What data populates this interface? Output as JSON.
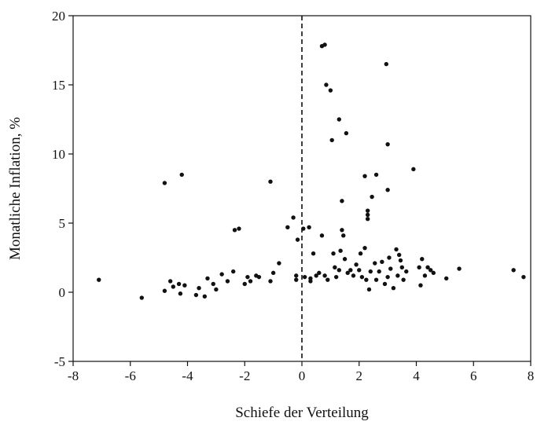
{
  "chart_data": {
    "type": "scatter",
    "title": "",
    "xlabel": "Schiefe der Verteilung",
    "ylabel": "Monatliche Inflation, %",
    "xlim": [
      -8,
      8
    ],
    "ylim": [
      -5,
      20
    ],
    "xticks": [
      -8,
      -6,
      -4,
      -2,
      0,
      2,
      4,
      6,
      8
    ],
    "yticks": [
      -5,
      0,
      5,
      10,
      15,
      20
    ],
    "xtick_labels": [
      "-8",
      "-6",
      "-4",
      "-2",
      "0",
      "2",
      "4",
      "6",
      "8"
    ],
    "ytick_labels": [
      "-5",
      "0",
      "5",
      "10",
      "15",
      "20"
    ],
    "reference_line": {
      "axis": "x",
      "value": 0,
      "style": "dashed"
    },
    "grid": false,
    "point_color": "#111111",
    "points": [
      [
        -7.1,
        0.9
      ],
      [
        -5.6,
        -0.4
      ],
      [
        -4.8,
        7.9
      ],
      [
        -4.2,
        8.5
      ],
      [
        -4.8,
        0.1
      ],
      [
        -4.6,
        0.8
      ],
      [
        -4.5,
        0.4
      ],
      [
        -4.3,
        0.6
      ],
      [
        -4.25,
        -0.1
      ],
      [
        -4.1,
        0.5
      ],
      [
        -3.7,
        -0.2
      ],
      [
        -3.6,
        0.3
      ],
      [
        -3.4,
        -0.3
      ],
      [
        -3.3,
        1.0
      ],
      [
        -3.1,
        0.6
      ],
      [
        -3.0,
        0.2
      ],
      [
        -2.8,
        1.3
      ],
      [
        -2.6,
        0.8
      ],
      [
        -2.4,
        1.5
      ],
      [
        -2.35,
        4.5
      ],
      [
        -2.2,
        4.6
      ],
      [
        -2.0,
        0.6
      ],
      [
        -1.9,
        1.1
      ],
      [
        -1.8,
        0.8
      ],
      [
        -1.6,
        1.2
      ],
      [
        -1.5,
        1.1
      ],
      [
        -1.1,
        8.0
      ],
      [
        -1.0,
        1.4
      ],
      [
        -1.1,
        0.8
      ],
      [
        -0.8,
        2.1
      ],
      [
        -0.5,
        4.7
      ],
      [
        -0.3,
        5.4
      ],
      [
        -0.15,
        3.8
      ],
      [
        -0.2,
        1.2
      ],
      [
        -0.2,
        0.9
      ],
      [
        0.05,
        4.6
      ],
      [
        0.1,
        1.1
      ],
      [
        0.25,
        4.7
      ],
      [
        0.3,
        0.8
      ],
      [
        0.3,
        1.0
      ],
      [
        0.4,
        2.8
      ],
      [
        0.5,
        1.2
      ],
      [
        0.6,
        1.4
      ],
      [
        0.7,
        17.8
      ],
      [
        0.8,
        17.9
      ],
      [
        0.85,
        15.0
      ],
      [
        0.7,
        4.1
      ],
      [
        0.8,
        1.2
      ],
      [
        0.9,
        0.9
      ],
      [
        1.0,
        14.6
      ],
      [
        1.05,
        11.0
      ],
      [
        1.1,
        2.8
      ],
      [
        1.15,
        1.8
      ],
      [
        1.2,
        1.1
      ],
      [
        1.3,
        12.5
      ],
      [
        1.3,
        1.6
      ],
      [
        1.35,
        3.0
      ],
      [
        1.4,
        6.6
      ],
      [
        1.4,
        4.5
      ],
      [
        1.45,
        4.1
      ],
      [
        1.5,
        2.4
      ],
      [
        1.55,
        11.5
      ],
      [
        1.6,
        1.4
      ],
      [
        1.7,
        1.6
      ],
      [
        1.8,
        1.2
      ],
      [
        1.9,
        2.0
      ],
      [
        2.0,
        1.6
      ],
      [
        2.05,
        2.8
      ],
      [
        2.1,
        1.1
      ],
      [
        2.2,
        3.2
      ],
      [
        2.2,
        8.4
      ],
      [
        2.25,
        0.9
      ],
      [
        2.3,
        5.9
      ],
      [
        2.3,
        5.6
      ],
      [
        2.3,
        5.3
      ],
      [
        2.35,
        0.2
      ],
      [
        2.4,
        1.5
      ],
      [
        2.45,
        6.9
      ],
      [
        2.55,
        2.1
      ],
      [
        2.6,
        8.5
      ],
      [
        2.6,
        0.9
      ],
      [
        2.7,
        1.5
      ],
      [
        2.8,
        2.2
      ],
      [
        2.9,
        0.6
      ],
      [
        2.95,
        16.5
      ],
      [
        3.0,
        10.7
      ],
      [
        3.0,
        7.4
      ],
      [
        3.0,
        1.1
      ],
      [
        3.05,
        2.5
      ],
      [
        3.1,
        1.7
      ],
      [
        3.2,
        0.3
      ],
      [
        3.3,
        3.1
      ],
      [
        3.35,
        1.2
      ],
      [
        3.4,
        2.7
      ],
      [
        3.45,
        2.3
      ],
      [
        3.5,
        1.8
      ],
      [
        3.55,
        0.9
      ],
      [
        3.65,
        1.5
      ],
      [
        3.9,
        8.9
      ],
      [
        4.1,
        1.8
      ],
      [
        4.15,
        0.5
      ],
      [
        4.2,
        2.4
      ],
      [
        4.3,
        1.2
      ],
      [
        4.4,
        1.8
      ],
      [
        4.5,
        1.6
      ],
      [
        4.6,
        1.4
      ],
      [
        5.05,
        1.0
      ],
      [
        5.5,
        1.7
      ],
      [
        7.4,
        1.6
      ],
      [
        7.75,
        1.1
      ]
    ]
  }
}
